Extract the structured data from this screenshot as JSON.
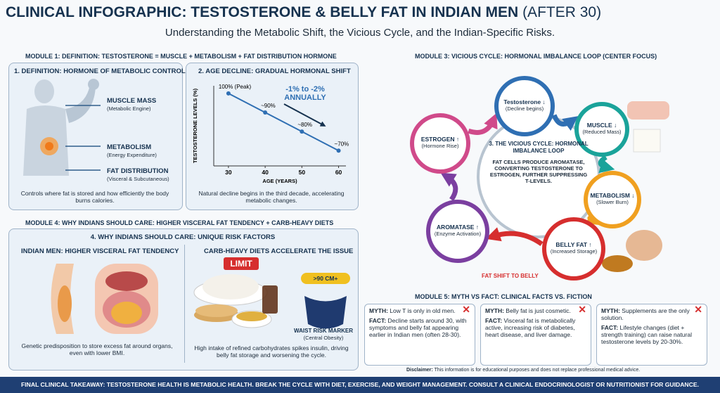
{
  "header": {
    "title": "CLINICAL INFOGRAPHIC: TESTOSTERONE & BELLY FAT IN INDIAN MEN",
    "title_suffix": "(AFTER 30)",
    "subtitle": "Understanding the Metabolic Shift, the Vicious Cycle, and the Indian-Specific Risks."
  },
  "module1": {
    "heading": "MODULE 1: DEFINITION: TESTOSTERONE = MUSCLE + METABOLISM + FAT DISTRIBUTION HORMONE",
    "panel": {
      "title": "1. DEFINITION: HORMONE OF METABOLIC CONTROL",
      "items": [
        {
          "label": "MUSCLE MASS",
          "note": "(Metabolic Engine)"
        },
        {
          "label": "METABOLISM",
          "note": "(Energy Expenditure)"
        },
        {
          "label": "FAT DISTRIBUTION",
          "note": "(Visceral & Subcutaneous)"
        }
      ],
      "caption": "Controls where fat is stored and how efficiently the body burns calories."
    }
  },
  "chart_data": {
    "type": "line",
    "title": "2. AGE DECLINE: GRADUAL HORMONAL SHIFT",
    "x": [
      30,
      40,
      50,
      60
    ],
    "values": [
      100,
      90,
      80,
      70
    ],
    "value_labels": [
      "100% (Peak)",
      "~90%",
      "~80%",
      "~70%"
    ],
    "xlabel": "AGE (YEARS)",
    "ylabel": "TESTOSTERONE LEVELS (%)",
    "xlim": [
      26,
      62
    ],
    "ylim": [
      62,
      104
    ],
    "xticks": [
      30,
      40,
      50,
      60
    ],
    "color": "#2f6fb3",
    "annotation": [
      "-1% to -2%",
      "ANNUALLY"
    ],
    "caption": "Natural decline begins in the third decade, accelerating metabolic changes."
  },
  "module3": {
    "heading": "MODULE 3: VICIOUS CYCLE: HORMONAL IMBALANCE LOOP (CENTER FOCUS)",
    "center": {
      "title": "3. THE VICIOUS CYCLE: HORMONAL IMBALANCE LOOP",
      "text": "FAT CELLS PRODUCE AROMATASE, CONVERTING TESTOSTERONE TO ESTROGEN, FURTHER SUPPRESSING T-LEVELS."
    },
    "nodes": [
      {
        "label": "Testosterone ↓",
        "note": "(Decline begins)",
        "color": "#2f6fb3"
      },
      {
        "label": "MUSCLE ↓",
        "note": "(Reduced Mass)",
        "color": "#1aa39a"
      },
      {
        "label": "METABOLISM ↓",
        "note": "(Slower Burn)",
        "color": "#f0a020"
      },
      {
        "label": "BELLY FAT ↑",
        "note": "(Increased Storage)",
        "color": "#d62e2e"
      },
      {
        "label": "AROMATASE ↑",
        "note": "(Enzyme Activation)",
        "color": "#7b3fa0"
      },
      {
        "label": "ESTROGEN ↑",
        "note": "(Hormone Rise)",
        "color": "#d04a8a"
      }
    ],
    "arrow_label": "FAT SHIFT TO BELLY"
  },
  "module4": {
    "heading": "MODULE 4: WHY INDIANS SHOULD CARE: HIGHER VISCERAL FAT TENDENCY + CARB-HEAVY DIETS",
    "title": "4. WHY INDIANS SHOULD CARE: UNIQUE RISK FACTORS",
    "left": {
      "title": "INDIAN MEN: HIGHER VISCERAL FAT TENDENCY",
      "caption": "Genetic predisposition to store excess fat around organs, even with lower BMI."
    },
    "right": {
      "title": "CARB-HEAVY DIETS ACCELERATE THE ISSUE",
      "badge": "LIMIT",
      "marker": ">90 CM+",
      "marker_label": "WAIST RISK MARKER",
      "marker_note": "(Central Obesity)",
      "caption": "High intake of refined carbohydrates spikes insulin, driving belly fat storage and worsening the cycle."
    }
  },
  "module5": {
    "heading": "MODULE 5: MYTH VS FACT: CLINICAL FACTS VS. FICTION",
    "myth_label": "MYTH:",
    "fact_label": "FACT:",
    "cards": [
      {
        "myth": "Low T is only in old men.",
        "fact": "Decline starts around 30, with symptoms and belly fat appearing earlier in Indian men (often 28-30)."
      },
      {
        "myth": "Belly fat is just cosmetic.",
        "fact": "Visceral fat is metabolically active, increasing risk of diabetes, heart disease, and liver damage."
      },
      {
        "myth": "Supplements are the only solution.",
        "fact": "Lifestyle changes (diet + strength training) can raise natural testosterone levels by 20-30%."
      }
    ]
  },
  "disclaimer": {
    "label": "Disclaimer:",
    "text": "This information is for educational purposes and does not replace professional medical advice."
  },
  "footer": "FINAL CLINICAL TAKEAWAY: TESTOSTERONE HEALTH IS METABOLIC HEALTH. BREAK THE CYCLE WITH DIET, EXERCISE, AND WEIGHT MANAGEMENT. CONSULT A CLINICAL ENDOCRINOLOGIST OR NUTRITIONIST FOR GUIDANCE."
}
